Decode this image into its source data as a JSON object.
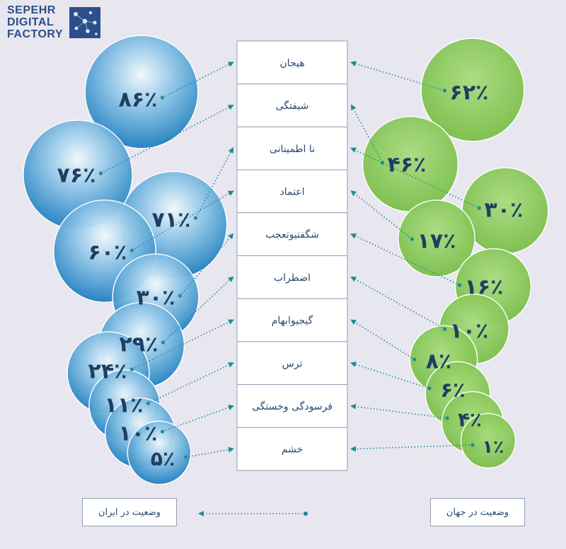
{
  "brand": {
    "lines": [
      "SEPEHR",
      "DIGITAL",
      "FACTORY"
    ]
  },
  "colors": {
    "iran": "#1e7fc0",
    "world": "#7dc24a",
    "connector": "#1e8c96"
  },
  "chart_data": {
    "type": "bubble",
    "categories": [
      "هیجان",
      "شیفتگی",
      "نا اطمینانی",
      "اعتماد",
      "شگفتیوتعجب",
      "اضطراب",
      "گیجیوابهام",
      "ترس",
      "فرسودگی وخستگی",
      "خشم"
    ],
    "series": [
      {
        "name": "وضعیت در ایران",
        "labels": [
          "۸۶٪",
          "۷۶٪",
          "۷۱٪",
          "۶۰٪",
          "۳۰٪",
          "۲۹٪",
          "۲۴٪",
          "۱۱٪",
          "۱۰٪",
          "۵٪"
        ],
        "values": [
          86,
          76,
          71,
          60,
          30,
          29,
          24,
          11,
          10,
          5
        ]
      },
      {
        "name": "وضعیت در جهان",
        "labels": [
          "۶۲٪",
          "۴۶٪",
          "۳۰٪",
          "۱۷٪",
          "۱۶٪",
          "۱۰٪",
          "۸٪",
          "۶٪",
          "۴٪",
          "۱٪"
        ],
        "values": [
          62,
          46,
          30,
          17,
          16,
          10,
          8,
          6,
          4,
          1
        ]
      }
    ]
  },
  "legend": {
    "iran": "وضعیت در ایران",
    "world": "وضعیت در جهان"
  }
}
